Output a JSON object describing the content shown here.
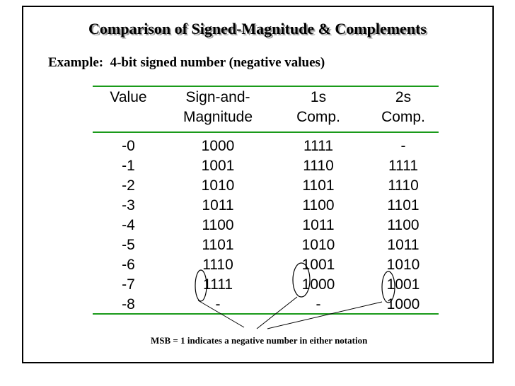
{
  "title": "Comparison of Signed-Magnitude & Complements",
  "subtitle": "Example:  4-bit signed number (negative values)",
  "table": {
    "headers": [
      [
        "Value"
      ],
      [
        "Sign-and-",
        "Magnitude"
      ],
      [
        "1s",
        "Comp."
      ],
      [
        "2s",
        "Comp."
      ]
    ],
    "rows": [
      [
        "-0",
        "1000",
        "1111",
        "-"
      ],
      [
        "-1",
        "1001",
        "1110",
        "1111"
      ],
      [
        "-2",
        "1010",
        "1101",
        "1110"
      ],
      [
        "-3",
        "1011",
        "1100",
        "1101"
      ],
      [
        "-4",
        "1100",
        "1011",
        "1100"
      ],
      [
        "-5",
        "1101",
        "1010",
        "1011"
      ],
      [
        "-6",
        "1110",
        "1001",
        "1010"
      ],
      [
        "-7",
        "1111",
        "1000",
        "1001"
      ],
      [
        "-8",
        "-",
        "-",
        "1000"
      ]
    ]
  },
  "note": "MSB = 1 indicates a negative number in either notation",
  "colors": {
    "rule": "#1a9a1a",
    "text": "#000000",
    "title_shadow": "#9a9a9a"
  }
}
